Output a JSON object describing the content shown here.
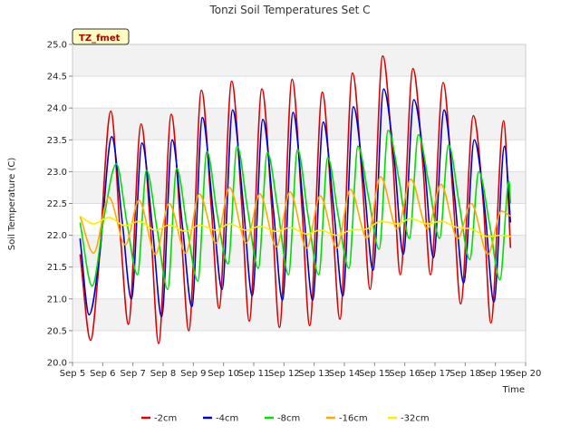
{
  "chart_data": {
    "type": "line",
    "title": "Tonzi Soil Temperatures Set C",
    "xlabel": "Time",
    "ylabel": "Soil Temperature (C)",
    "badge": "TZ_fmet",
    "xlim": [
      5,
      20
    ],
    "ylim": [
      20.0,
      25.0
    ],
    "x_ticks": [
      5,
      6,
      7,
      8,
      9,
      10,
      11,
      12,
      13,
      14,
      15,
      16,
      17,
      18,
      19,
      20
    ],
    "x_tick_labels": [
      "Sep 5",
      "Sep 6",
      "Sep 7",
      "Sep 8",
      "Sep 9",
      "Sep 10",
      "Sep 11",
      "Sep 12",
      "Sep 13",
      "Sep 14",
      "Sep 15",
      "Sep 16",
      "Sep 17",
      "Sep 18",
      "Sep 19",
      "Sep 20"
    ],
    "y_ticks": [
      20.0,
      20.5,
      21.0,
      21.5,
      22.0,
      22.5,
      23.0,
      23.5,
      24.0,
      24.5,
      25.0
    ],
    "y_tick_labels": [
      "20.0",
      "20.5",
      "21.0",
      "21.5",
      "22.0",
      "22.5",
      "23.0",
      "23.5",
      "24.0",
      "24.5",
      "25.0"
    ],
    "grid": "horizontal bands",
    "legend_position": "bottom",
    "series": [
      {
        "name": "-2cm",
        "color": "#dd0000",
        "x": [
          5.25,
          5.6,
          5.85,
          6.27,
          6.6,
          6.85,
          7.27,
          7.6,
          7.85,
          8.27,
          8.6,
          8.85,
          9.27,
          9.6,
          9.85,
          10.27,
          10.6,
          10.85,
          11.27,
          11.6,
          11.85,
          12.27,
          12.6,
          12.85,
          13.27,
          13.6,
          13.85,
          14.27,
          14.6,
          14.85,
          15.27,
          15.6,
          15.85,
          16.27,
          16.6,
          16.85,
          17.27,
          17.6,
          17.85,
          18.27,
          18.6,
          18.85,
          19.27,
          19.5
        ],
        "y": [
          21.7,
          20.35,
          21.4,
          23.95,
          21.9,
          20.6,
          23.75,
          22.0,
          20.3,
          23.9,
          22.0,
          20.5,
          24.28,
          22.4,
          20.85,
          24.42,
          22.5,
          20.65,
          24.3,
          22.4,
          20.55,
          24.45,
          22.4,
          20.58,
          24.25,
          22.3,
          20.68,
          24.55,
          22.8,
          21.15,
          24.82,
          23.2,
          21.38,
          24.62,
          23.1,
          21.38,
          24.4,
          22.6,
          20.92,
          23.88,
          22.5,
          20.62,
          23.8,
          21.8
        ]
      },
      {
        "name": "-4cm",
        "color": "#0000cc",
        "x": [
          5.25,
          5.55,
          5.9,
          6.3,
          6.65,
          6.95,
          7.3,
          7.65,
          7.95,
          8.3,
          8.65,
          8.95,
          9.3,
          9.65,
          9.95,
          10.3,
          10.65,
          10.95,
          11.3,
          11.65,
          11.95,
          12.3,
          12.65,
          12.95,
          13.3,
          13.65,
          13.95,
          14.3,
          14.65,
          14.95,
          15.3,
          15.65,
          15.95,
          16.3,
          16.65,
          16.95,
          17.3,
          17.65,
          17.95,
          18.3,
          18.65,
          18.95,
          19.3,
          19.5
        ],
        "y": [
          21.95,
          20.75,
          21.7,
          23.55,
          22.2,
          21.0,
          23.45,
          22.1,
          20.72,
          23.5,
          22.1,
          20.88,
          23.85,
          22.4,
          21.15,
          23.97,
          22.5,
          21.05,
          23.82,
          22.4,
          20.98,
          23.93,
          22.4,
          20.98,
          23.78,
          22.4,
          21.05,
          24.02,
          22.8,
          21.45,
          24.3,
          23.2,
          21.7,
          24.13,
          23.1,
          21.65,
          23.97,
          22.6,
          21.25,
          23.5,
          22.4,
          20.95,
          23.4,
          22.2
        ]
      },
      {
        "name": "-8cm",
        "color": "#00dd00",
        "x": [
          5.25,
          5.65,
          6.05,
          6.45,
          6.8,
          7.15,
          7.45,
          7.8,
          8.15,
          8.45,
          8.8,
          9.15,
          9.45,
          9.8,
          10.15,
          10.45,
          10.8,
          11.15,
          11.45,
          11.8,
          12.15,
          12.45,
          12.8,
          13.15,
          13.45,
          13.8,
          14.15,
          14.45,
          14.8,
          15.15,
          15.45,
          15.8,
          16.15,
          16.45,
          16.8,
          17.15,
          17.45,
          17.8,
          18.15,
          18.45,
          18.8,
          19.15,
          19.45,
          19.5
        ],
        "y": [
          22.2,
          21.2,
          22.3,
          23.12,
          22.2,
          21.38,
          23.02,
          22.1,
          21.15,
          23.05,
          22.1,
          21.28,
          23.32,
          22.3,
          21.55,
          23.4,
          22.4,
          21.48,
          23.3,
          22.4,
          21.38,
          23.35,
          22.3,
          21.38,
          23.22,
          22.3,
          21.48,
          23.4,
          22.6,
          21.78,
          23.65,
          22.9,
          21.95,
          23.58,
          22.8,
          21.95,
          23.42,
          22.5,
          21.62,
          23.0,
          22.2,
          21.3,
          22.85,
          22.5
        ]
      },
      {
        "name": "-16cm",
        "color": "#ffaa00",
        "x": [
          5.25,
          5.7,
          6.2,
          6.75,
          7.2,
          7.75,
          8.2,
          8.75,
          9.2,
          9.75,
          10.2,
          10.75,
          11.2,
          11.75,
          12.2,
          12.75,
          13.2,
          13.75,
          14.2,
          14.75,
          15.2,
          15.75,
          16.2,
          16.75,
          17.2,
          17.75,
          18.2,
          18.75,
          19.2,
          19.5
        ],
        "y": [
          22.3,
          21.72,
          22.6,
          21.85,
          22.55,
          21.7,
          22.5,
          21.72,
          22.65,
          21.88,
          22.75,
          21.88,
          22.65,
          21.82,
          22.68,
          21.8,
          22.62,
          21.8,
          22.72,
          21.95,
          22.92,
          22.1,
          22.88,
          22.1,
          22.8,
          21.95,
          22.5,
          21.7,
          22.38,
          22.3
        ]
      },
      {
        "name": "-32cm",
        "color": "#ffee00",
        "x": [
          5.25,
          5.7,
          6.2,
          6.75,
          7.2,
          7.75,
          8.2,
          8.75,
          9.2,
          9.75,
          10.2,
          10.75,
          11.2,
          11.75,
          12.2,
          12.75,
          13.2,
          13.75,
          14.2,
          14.75,
          15.2,
          15.75,
          16.2,
          16.75,
          17.2,
          17.75,
          18.2,
          18.75,
          19.2,
          19.5
        ],
        "y": [
          22.3,
          22.18,
          22.28,
          22.15,
          22.22,
          22.08,
          22.16,
          22.06,
          22.16,
          22.08,
          22.18,
          22.08,
          22.14,
          22.06,
          22.12,
          22.02,
          22.08,
          22.0,
          22.08,
          22.1,
          22.22,
          22.18,
          22.26,
          22.18,
          22.22,
          22.12,
          22.1,
          21.98,
          22.0,
          21.98
        ]
      }
    ]
  }
}
